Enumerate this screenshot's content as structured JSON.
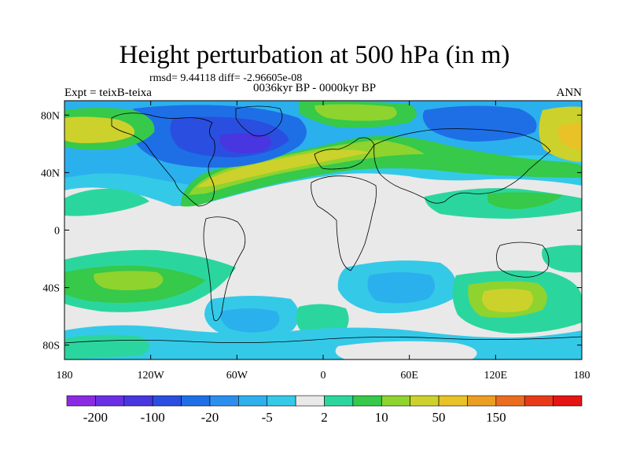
{
  "figure": {
    "title": "Height perturbation at 500 hPa (in m)",
    "stats": "rmsd= 9.44118 diff= -2.96605e-08",
    "experiment": "Expt = teixB-teixa",
    "period": "0036kyr BP - 0000kyr BP",
    "season": "ANN"
  },
  "map": {
    "projection": "cylindrical equidistant",
    "lon_range": [
      -180,
      180
    ],
    "lat_range": [
      -90,
      90
    ],
    "coastlines": true
  },
  "axes": {
    "y_ticks": [
      {
        "label": "80N",
        "lat": 80
      },
      {
        "label": "40N",
        "lat": 40
      },
      {
        "label": "0",
        "lat": 0
      },
      {
        "label": "40S",
        "lat": -40
      },
      {
        "label": "80S",
        "lat": -80
      }
    ],
    "x_ticks": [
      {
        "label": "180",
        "lon": -180
      },
      {
        "label": "120W",
        "lon": -120
      },
      {
        "label": "60W",
        "lon": -60
      },
      {
        "label": "0",
        "lon": 0
      },
      {
        "label": "60E",
        "lon": 60
      },
      {
        "label": "120E",
        "lon": 120
      },
      {
        "label": "180",
        "lon": 180
      }
    ]
  },
  "colorbar": {
    "colors": [
      "#8a2be2",
      "#6a2ee6",
      "#4836e0",
      "#2a4fe0",
      "#1e6fe6",
      "#2b8fef",
      "#2fb0ee",
      "#35c9e8",
      "#e9e9e9",
      "#2bd69e",
      "#36c94a",
      "#8fd32e",
      "#cdd12c",
      "#e8c227",
      "#eb9e22",
      "#ea6c1f",
      "#e83a19",
      "#e41512"
    ],
    "labels": [
      "-200",
      "-100",
      "-20",
      "-5",
      "2",
      "10",
      "50",
      "150"
    ]
  },
  "palette": {
    "land_outline": "#000000",
    "neutral": "#e9e9e9",
    "cyan": "#35c9e8",
    "light_blue": "#2bb0ee",
    "blue": "#1e6fe6",
    "dark_blue": "#2a4fe0",
    "teal": "#2bd69e",
    "green": "#36c94a",
    "lime": "#8fd32e",
    "yellow": "#cdd12c",
    "gold": "#e8c227",
    "orange": "#eb9e22"
  }
}
